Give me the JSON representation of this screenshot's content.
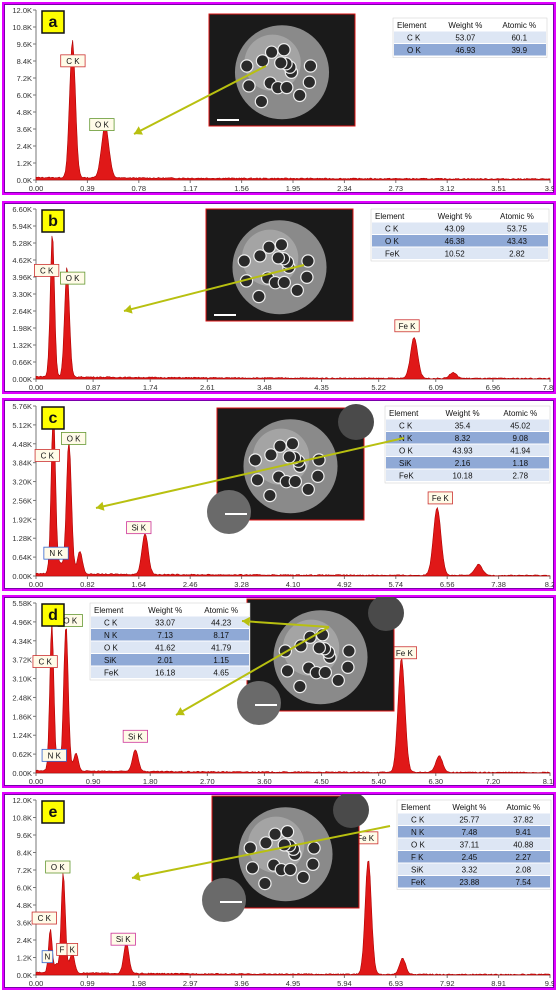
{
  "panels": [
    {
      "letter": "a",
      "y_ticks": [
        "12.0K",
        "10.8K",
        "9.6K",
        "8.4K",
        "7.2K",
        "6.0K",
        "4.8K",
        "3.6K",
        "2.4K",
        "1.2K",
        "0.0K"
      ],
      "x_ticks": [
        "0.00",
        "0.39",
        "0.78",
        "1.17",
        "1.56",
        "1.95",
        "2.34",
        "2.73",
        "3.12",
        "3.51",
        "3.9"
      ],
      "x_range": [
        0,
        3.9
      ],
      "y_range": [
        0,
        12000
      ],
      "peaks": [
        {
          "e": 0.277,
          "h": 9700,
          "w": 0.022
        },
        {
          "e": 0.525,
          "h": 3700,
          "w": 0.028
        }
      ],
      "labels": [
        {
          "text": "C  K",
          "e": 0.28,
          "y": 8200,
          "color": "#cc3333"
        },
        {
          "text": "O  K",
          "e": 0.5,
          "y": 3700,
          "color": "#669933"
        }
      ],
      "table": {
        "headers": [
          "Element",
          "Weight %",
          "Atomic %"
        ],
        "rows": [
          [
            "C K",
            "53.07",
            "60.1"
          ],
          [
            "O K",
            "46.93",
            "39.9"
          ]
        ]
      }
    },
    {
      "letter": "b",
      "y_ticks": [
        "6.60K",
        "5.94K",
        "5.28K",
        "4.62K",
        "3.96K",
        "3.30K",
        "2.64K",
        "1.98K",
        "1.32K",
        "0.66K",
        "0.00K"
      ],
      "x_ticks": [
        "0.00",
        "0.87",
        "1.74",
        "2.61",
        "3.48",
        "4.35",
        "5.22",
        "6.09",
        "6.96",
        "7.83"
      ],
      "x_range": [
        0,
        8.7
      ],
      "y_range": [
        0,
        6600
      ],
      "peaks": [
        {
          "e": 0.277,
          "h": 5600,
          "w": 0.035
        },
        {
          "e": 0.525,
          "h": 4300,
          "w": 0.04
        },
        {
          "e": 6.4,
          "h": 1600,
          "w": 0.06
        },
        {
          "e": 7.06,
          "h": 220,
          "w": 0.06
        }
      ],
      "labels": [
        {
          "text": "C  K",
          "e": 0.18,
          "y": 4100,
          "color": "#cc3333"
        },
        {
          "text": "O  K",
          "e": 0.62,
          "y": 3800,
          "color": "#669933"
        },
        {
          "text": "Fe K",
          "e": 6.28,
          "y": 1950,
          "color": "#cc3333"
        }
      ],
      "table": {
        "headers": [
          "Element",
          "Weight %",
          "Atomic %"
        ],
        "rows": [
          [
            "C K",
            "43.09",
            "53.75"
          ],
          [
            "O K",
            "46.38",
            "43.43"
          ],
          [
            "FeK",
            "10.52",
            "2.82"
          ]
        ]
      }
    },
    {
      "letter": "c",
      "y_ticks": [
        "5.76K",
        "5.12K",
        "4.48K",
        "3.84K",
        "3.20K",
        "2.56K",
        "1.92K",
        "1.28K",
        "0.64K",
        "0.00K"
      ],
      "x_ticks": [
        "0.00",
        "0.82",
        "1.64",
        "2.46",
        "3.28",
        "4.10",
        "4.92",
        "5.74",
        "6.56",
        "7.38",
        "8.2"
      ],
      "x_range": [
        0,
        8.2
      ],
      "y_range": [
        0,
        6000
      ],
      "peaks": [
        {
          "e": 0.277,
          "h": 5700,
          "w": 0.035
        },
        {
          "e": 0.392,
          "h": 350,
          "w": 0.03
        },
        {
          "e": 0.525,
          "h": 4700,
          "w": 0.04
        },
        {
          "e": 0.7,
          "h": 800,
          "w": 0.04
        },
        {
          "e": 1.74,
          "h": 1450,
          "w": 0.05
        },
        {
          "e": 6.4,
          "h": 2400,
          "w": 0.06
        },
        {
          "e": 7.06,
          "h": 380,
          "w": 0.06
        }
      ],
      "labels": [
        {
          "text": "C  K",
          "e": 0.18,
          "y": 4150,
          "color": "#cc3333"
        },
        {
          "text": "O  K",
          "e": 0.6,
          "y": 4750,
          "color": "#669933"
        },
        {
          "text": "N  K",
          "e": 0.32,
          "y": 700,
          "color": "#3366cc"
        },
        {
          "text": "Si K",
          "e": 1.64,
          "y": 1600,
          "color": "#cc3399"
        },
        {
          "text": "Fe K",
          "e": 6.45,
          "y": 2650,
          "color": "#cc3333"
        }
      ],
      "table": {
        "headers": [
          "Element",
          "Weight %",
          "Atomic %"
        ],
        "rows": [
          [
            "C K",
            "35.4",
            "45.02"
          ],
          [
            "N K",
            "8.32",
            "9.08"
          ],
          [
            "O K",
            "43.93",
            "41.94"
          ],
          [
            "SiK",
            "2.16",
            "1.18"
          ],
          [
            "FeK",
            "10.18",
            "2.78"
          ]
        ]
      }
    },
    {
      "letter": "d",
      "y_ticks": [
        "5.58K",
        "4.96K",
        "4.34K",
        "3.72K",
        "3.10K",
        "2.48K",
        "1.86K",
        "1.24K",
        "0.62K",
        "0.00K"
      ],
      "x_ticks": [
        "0.00",
        "0.90",
        "1.80",
        "2.70",
        "3.60",
        "4.50",
        "5.40",
        "6.30",
        "7.20",
        "8.10"
      ],
      "x_range": [
        0,
        9.0
      ],
      "y_range": [
        0,
        5800
      ],
      "peaks": [
        {
          "e": 0.277,
          "h": 5100,
          "w": 0.035
        },
        {
          "e": 0.392,
          "h": 350,
          "w": 0.03
        },
        {
          "e": 0.525,
          "h": 5000,
          "w": 0.04
        },
        {
          "e": 0.7,
          "h": 600,
          "w": 0.04
        },
        {
          "e": 1.74,
          "h": 750,
          "w": 0.05
        },
        {
          "e": 6.4,
          "h": 3900,
          "w": 0.06
        },
        {
          "e": 7.06,
          "h": 560,
          "w": 0.06
        }
      ],
      "labels": [
        {
          "text": "C  K",
          "e": 0.16,
          "y": 3700,
          "color": "#cc3333"
        },
        {
          "text": "O  K",
          "e": 0.6,
          "y": 5100,
          "color": "#669933"
        },
        {
          "text": "N  K",
          "e": 0.32,
          "y": 500,
          "color": "#3366cc"
        },
        {
          "text": "Si K",
          "e": 1.74,
          "y": 1150,
          "color": "#cc3399"
        },
        {
          "text": "Fe K",
          "e": 6.45,
          "y": 4000,
          "color": "#cc3333"
        }
      ],
      "table": {
        "headers": [
          "Element",
          "Weight %",
          "Atomic %"
        ],
        "rows": [
          [
            "C K",
            "33.07",
            "44.23"
          ],
          [
            "N K",
            "7.13",
            "8.17"
          ],
          [
            "O K",
            "41.62",
            "41.79"
          ],
          [
            "SiK",
            "2.01",
            "1.15"
          ],
          [
            "FeK",
            "16.18",
            "4.65"
          ]
        ]
      }
    },
    {
      "letter": "e",
      "y_ticks": [
        "12.0K",
        "10.8K",
        "9.6K",
        "8.4K",
        "7.2K",
        "6.0K",
        "4.8K",
        "3.6K",
        "2.4K",
        "1.2K",
        "0.0K"
      ],
      "x_ticks": [
        "0.00",
        "0.99",
        "1.98",
        "2.97",
        "3.96",
        "4.95",
        "5.94",
        "6.93",
        "7.92",
        "8.91",
        "9.9"
      ],
      "x_range": [
        0,
        9.9
      ],
      "y_range": [
        0,
        12000
      ],
      "peaks": [
        {
          "e": 0.277,
          "h": 3000,
          "w": 0.035
        },
        {
          "e": 0.392,
          "h": 600,
          "w": 0.03
        },
        {
          "e": 0.525,
          "h": 6900,
          "w": 0.04
        },
        {
          "e": 0.677,
          "h": 900,
          "w": 0.04
        },
        {
          "e": 0.72,
          "h": 700,
          "w": 0.04
        },
        {
          "e": 1.74,
          "h": 2100,
          "w": 0.05
        },
        {
          "e": 6.4,
          "h": 7900,
          "w": 0.06
        },
        {
          "e": 7.06,
          "h": 1100,
          "w": 0.06
        }
      ],
      "labels": [
        {
          "text": "C  K",
          "e": 0.16,
          "y": 3700,
          "color": "#cc3333"
        },
        {
          "text": "O  K",
          "e": 0.42,
          "y": 7200,
          "color": "#669933"
        },
        {
          "text": "N",
          "e": 0.22,
          "y": 1050,
          "color": "#3366cc"
        },
        {
          "text": "F",
          "e": 0.5,
          "y": 1550,
          "color": "#cc3333"
        },
        {
          "text": "K",
          "e": 0.7,
          "y": 1550,
          "color": "#cc3333"
        },
        {
          "text": "Si K",
          "e": 1.68,
          "y": 2250,
          "color": "#cc3399"
        },
        {
          "text": "Fe K",
          "e": 6.35,
          "y": 9200,
          "color": "#cc3333"
        }
      ],
      "table": {
        "headers": [
          "Element",
          "Weight %",
          "Atomic %"
        ],
        "rows": [
          [
            "C K",
            "25.77",
            "37.82"
          ],
          [
            "N K",
            "7.48",
            "9.41"
          ],
          [
            "O K",
            "37.11",
            "40.88"
          ],
          [
            "F K",
            "2.45",
            "2.27"
          ],
          [
            "SiK",
            "3.32",
            "2.08"
          ],
          [
            "FeK",
            "23.88",
            "7.54"
          ]
        ]
      }
    }
  ],
  "chart_data": [
    {
      "panel": "a",
      "type": "area",
      "x_range": [
        0,
        3.9
      ],
      "y_range": [
        0,
        12000
      ],
      "peaks": [
        {
          "label": "C K",
          "energy_keV": 0.277,
          "counts": 9700
        },
        {
          "label": "O K",
          "energy_keV": 0.525,
          "counts": 3700
        }
      ],
      "table": {
        "C K": {
          "weight": 53.07,
          "atomic": 60.1
        },
        "O K": {
          "weight": 46.93,
          "atomic": 39.9
        }
      }
    },
    {
      "panel": "b",
      "type": "area",
      "x_range": [
        0,
        8.7
      ],
      "y_range": [
        0,
        6600
      ],
      "peaks": [
        {
          "label": "C K",
          "energy_keV": 0.277,
          "counts": 5600
        },
        {
          "label": "O K",
          "energy_keV": 0.525,
          "counts": 4300
        },
        {
          "label": "Fe K",
          "energy_keV": 6.4,
          "counts": 1600
        }
      ],
      "table": {
        "C K": {
          "weight": 43.09,
          "atomic": 53.75
        },
        "O K": {
          "weight": 46.38,
          "atomic": 43.43
        },
        "FeK": {
          "weight": 10.52,
          "atomic": 2.82
        }
      }
    },
    {
      "panel": "c",
      "type": "area",
      "x_range": [
        0,
        8.2
      ],
      "y_range": [
        0,
        6000
      ],
      "peaks": [
        {
          "label": "C K",
          "energy_keV": 0.277,
          "counts": 5700
        },
        {
          "label": "N K",
          "energy_keV": 0.392,
          "counts": 350
        },
        {
          "label": "O K",
          "energy_keV": 0.525,
          "counts": 4700
        },
        {
          "label": "Si K",
          "energy_keV": 1.74,
          "counts": 1450
        },
        {
          "label": "Fe K",
          "energy_keV": 6.4,
          "counts": 2400
        }
      ],
      "table": {
        "C K": {
          "weight": 35.4,
          "atomic": 45.02
        },
        "N K": {
          "weight": 8.32,
          "atomic": 9.08
        },
        "O K": {
          "weight": 43.93,
          "atomic": 41.94
        },
        "SiK": {
          "weight": 2.16,
          "atomic": 1.18
        },
        "FeK": {
          "weight": 10.18,
          "atomic": 2.78
        }
      }
    },
    {
      "panel": "d",
      "type": "area",
      "x_range": [
        0,
        9.0
      ],
      "y_range": [
        0,
        5800
      ],
      "peaks": [
        {
          "label": "C K",
          "energy_keV": 0.277,
          "counts": 5100
        },
        {
          "label": "N K",
          "energy_keV": 0.392,
          "counts": 350
        },
        {
          "label": "O K",
          "energy_keV": 0.525,
          "counts": 5000
        },
        {
          "label": "Si K",
          "energy_keV": 1.74,
          "counts": 750
        },
        {
          "label": "Fe K",
          "energy_keV": 6.4,
          "counts": 3900
        }
      ],
      "table": {
        "C K": {
          "weight": 33.07,
          "atomic": 44.23
        },
        "N K": {
          "weight": 7.13,
          "atomic": 8.17
        },
        "O K": {
          "weight": 41.62,
          "atomic": 41.79
        },
        "SiK": {
          "weight": 2.01,
          "atomic": 1.15
        },
        "FeK": {
          "weight": 16.18,
          "atomic": 4.65
        }
      }
    },
    {
      "panel": "e",
      "type": "area",
      "x_range": [
        0,
        9.9
      ],
      "y_range": [
        0,
        12000
      ],
      "peaks": [
        {
          "label": "C K",
          "energy_keV": 0.277,
          "counts": 3000
        },
        {
          "label": "N K",
          "energy_keV": 0.392,
          "counts": 600
        },
        {
          "label": "O K",
          "energy_keV": 0.525,
          "counts": 6900
        },
        {
          "label": "F K",
          "energy_keV": 0.677,
          "counts": 900
        },
        {
          "label": "Si K",
          "energy_keV": 1.74,
          "counts": 2100
        },
        {
          "label": "Fe K",
          "energy_keV": 6.4,
          "counts": 7900
        }
      ],
      "table": {
        "C K": {
          "weight": 25.77,
          "atomic": 37.82
        },
        "N K": {
          "weight": 7.48,
          "atomic": 9.41
        },
        "O K": {
          "weight": 37.11,
          "atomic": 40.88
        },
        "F K": {
          "weight": 2.45,
          "atomic": 2.27
        },
        "SiK": {
          "weight": 3.32,
          "atomic": 2.08
        },
        "FeK": {
          "weight": 23.88,
          "atomic": 7.54
        }
      }
    }
  ]
}
